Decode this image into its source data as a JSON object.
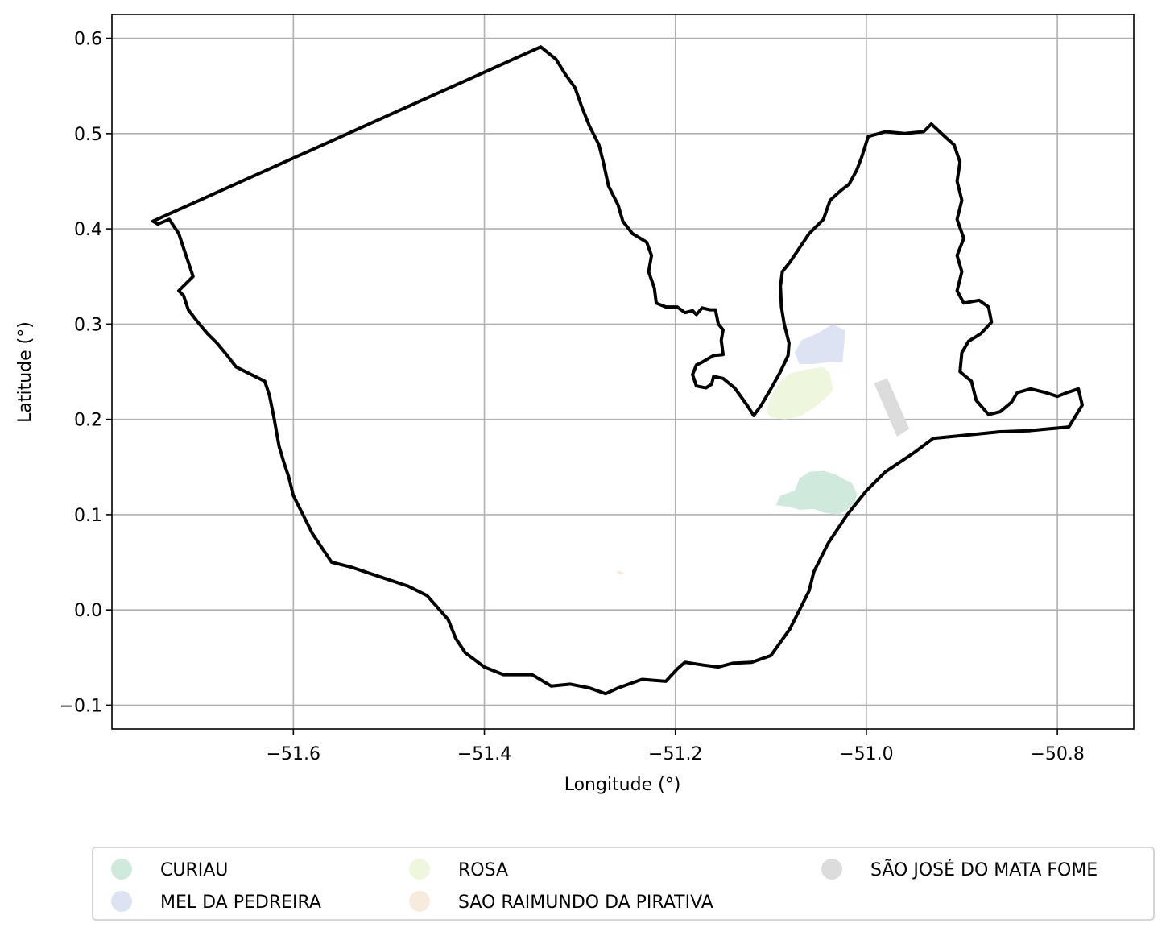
{
  "chart_data": {
    "type": "map",
    "xlabel": "Longitude (°)",
    "ylabel": "Latitude (°)",
    "xlim": [
      -51.79,
      -50.72
    ],
    "ylim": [
      -0.125,
      0.625
    ],
    "grid": true,
    "x_ticks": [
      -51.6,
      -51.4,
      -51.2,
      -51.0,
      -50.8
    ],
    "x_tick_labels": [
      "−51.6",
      "−51.4",
      "−51.2",
      "−51.0",
      "−50.8"
    ],
    "y_ticks": [
      -0.1,
      0.0,
      0.1,
      0.2,
      0.3,
      0.4,
      0.5,
      0.6
    ],
    "y_tick_labels": [
      "−0.1",
      "0.0",
      "0.1",
      "0.2",
      "0.3",
      "0.4",
      "0.5",
      "0.6"
    ],
    "legend_placement": "bottom-center",
    "legend_columns": 3,
    "boundary": {
      "color": "#000000",
      "coords": [
        [
          -51.747,
          0.408
        ],
        [
          -51.341,
          0.591
        ],
        [
          -51.325,
          0.578
        ],
        [
          -51.315,
          0.562
        ],
        [
          -51.305,
          0.548
        ],
        [
          -51.298,
          0.528
        ],
        [
          -51.29,
          0.508
        ],
        [
          -51.28,
          0.488
        ],
        [
          -51.275,
          0.468
        ],
        [
          -51.27,
          0.445
        ],
        [
          -51.26,
          0.425
        ],
        [
          -51.255,
          0.408
        ],
        [
          -51.245,
          0.395
        ],
        [
          -51.23,
          0.386
        ],
        [
          -51.225,
          0.372
        ],
        [
          -51.228,
          0.355
        ],
        [
          -51.222,
          0.338
        ],
        [
          -51.22,
          0.322
        ],
        [
          -51.21,
          0.318
        ],
        [
          -51.198,
          0.318
        ],
        [
          -51.19,
          0.312
        ],
        [
          -51.182,
          0.314
        ],
        [
          -51.178,
          0.31
        ],
        [
          -51.172,
          0.317
        ],
        [
          -51.164,
          0.315
        ],
        [
          -51.158,
          0.315
        ],
        [
          -51.155,
          0.3
        ],
        [
          -51.15,
          0.294
        ],
        [
          -51.152,
          0.283
        ],
        [
          -51.15,
          0.268
        ],
        [
          -51.16,
          0.267
        ],
        [
          -51.172,
          0.26
        ],
        [
          -51.178,
          0.257
        ],
        [
          -51.182,
          0.247
        ],
        [
          -51.178,
          0.235
        ],
        [
          -51.168,
          0.233
        ],
        [
          -51.162,
          0.237
        ],
        [
          -51.16,
          0.245
        ],
        [
          -51.15,
          0.243
        ],
        [
          -51.138,
          0.233
        ],
        [
          -51.125,
          0.215
        ],
        [
          -51.118,
          0.204
        ],
        [
          -51.11,
          0.215
        ],
        [
          -51.1,
          0.232
        ],
        [
          -51.09,
          0.25
        ],
        [
          -51.082,
          0.267
        ],
        [
          -51.081,
          0.28
        ],
        [
          -51.086,
          0.3
        ],
        [
          -51.089,
          0.318
        ],
        [
          -51.09,
          0.34
        ],
        [
          -51.088,
          0.355
        ],
        [
          -51.08,
          0.365
        ],
        [
          -51.07,
          0.38
        ],
        [
          -51.06,
          0.395
        ],
        [
          -51.045,
          0.41
        ],
        [
          -51.038,
          0.43
        ],
        [
          -51.027,
          0.44
        ],
        [
          -51.018,
          0.447
        ],
        [
          -51.01,
          0.462
        ],
        [
          -51.005,
          0.475
        ],
        [
          -50.998,
          0.497
        ],
        [
          -50.98,
          0.502
        ],
        [
          -50.96,
          0.5
        ],
        [
          -50.94,
          0.502
        ],
        [
          -50.932,
          0.51
        ],
        [
          -50.918,
          0.497
        ],
        [
          -50.908,
          0.488
        ],
        [
          -50.902,
          0.47
        ],
        [
          -50.905,
          0.45
        ],
        [
          -50.9,
          0.43
        ],
        [
          -50.905,
          0.41
        ],
        [
          -50.898,
          0.39
        ],
        [
          -50.905,
          0.372
        ],
        [
          -50.9,
          0.355
        ],
        [
          -50.905,
          0.335
        ],
        [
          -50.898,
          0.322
        ],
        [
          -50.882,
          0.325
        ],
        [
          -50.872,
          0.318
        ],
        [
          -50.869,
          0.302
        ],
        [
          -50.88,
          0.29
        ],
        [
          -50.893,
          0.282
        ],
        [
          -50.9,
          0.27
        ],
        [
          -50.902,
          0.25
        ],
        [
          -50.89,
          0.24
        ],
        [
          -50.885,
          0.22
        ],
        [
          -50.872,
          0.205
        ],
        [
          -50.86,
          0.208
        ],
        [
          -50.848,
          0.218
        ],
        [
          -50.842,
          0.228
        ],
        [
          -50.828,
          0.232
        ],
        [
          -50.812,
          0.228
        ],
        [
          -50.8,
          0.224
        ],
        [
          -50.79,
          0.228
        ],
        [
          -50.778,
          0.232
        ],
        [
          -50.774,
          0.215
        ],
        [
          -50.788,
          0.192
        ],
        [
          -50.81,
          0.19
        ],
        [
          -50.83,
          0.188
        ],
        [
          -50.86,
          0.187
        ],
        [
          -50.9,
          0.183
        ],
        [
          -50.93,
          0.18
        ],
        [
          -50.95,
          0.165
        ],
        [
          -50.98,
          0.145
        ],
        [
          -51.0,
          0.125
        ],
        [
          -51.02,
          0.1
        ],
        [
          -51.04,
          0.07
        ],
        [
          -51.055,
          0.04
        ],
        [
          -51.06,
          0.02
        ],
        [
          -51.07,
          0.0
        ],
        [
          -51.08,
          -0.02
        ],
        [
          -51.1,
          -0.048
        ],
        [
          -51.12,
          -0.055
        ],
        [
          -51.14,
          -0.056
        ],
        [
          -51.155,
          -0.06
        ],
        [
          -51.17,
          -0.058
        ],
        [
          -51.19,
          -0.055
        ],
        [
          -51.198,
          -0.062
        ],
        [
          -51.21,
          -0.075
        ],
        [
          -51.235,
          -0.073
        ],
        [
          -51.26,
          -0.082
        ],
        [
          -51.273,
          -0.088
        ],
        [
          -51.29,
          -0.082
        ],
        [
          -51.31,
          -0.078
        ],
        [
          -51.33,
          -0.08
        ],
        [
          -51.35,
          -0.068
        ],
        [
          -51.38,
          -0.068
        ],
        [
          -51.4,
          -0.06
        ],
        [
          -51.42,
          -0.045
        ],
        [
          -51.43,
          -0.03
        ],
        [
          -51.438,
          -0.01
        ],
        [
          -51.46,
          0.015
        ],
        [
          -51.48,
          0.025
        ],
        [
          -51.51,
          0.035
        ],
        [
          -51.54,
          0.045
        ],
        [
          -51.56,
          0.05
        ],
        [
          -51.57,
          0.065
        ],
        [
          -51.58,
          0.08
        ],
        [
          -51.59,
          0.1
        ],
        [
          -51.6,
          0.12
        ],
        [
          -51.605,
          0.14
        ],
        [
          -51.61,
          0.155
        ],
        [
          -51.615,
          0.172
        ],
        [
          -51.62,
          0.2
        ],
        [
          -51.625,
          0.225
        ],
        [
          -51.63,
          0.24
        ],
        [
          -51.64,
          0.245
        ],
        [
          -51.66,
          0.255
        ],
        [
          -51.67,
          0.268
        ],
        [
          -51.68,
          0.28
        ],
        [
          -51.69,
          0.29
        ],
        [
          -51.7,
          0.302
        ],
        [
          -51.71,
          0.315
        ],
        [
          -51.715,
          0.33
        ],
        [
          -51.72,
          0.335
        ],
        [
          -51.705,
          0.35
        ],
        [
          -51.71,
          0.365
        ],
        [
          -51.715,
          0.38
        ],
        [
          -51.72,
          0.395
        ],
        [
          -51.73,
          0.41
        ],
        [
          -51.742,
          0.405
        ],
        [
          -51.747,
          0.408
        ]
      ]
    },
    "series": [
      {
        "name": "CURIAU",
        "color": "#cfeadd",
        "coords": [
          [
            -51.095,
            0.11
          ],
          [
            -51.09,
            0.12
          ],
          [
            -51.075,
            0.125
          ],
          [
            -51.07,
            0.138
          ],
          [
            -51.06,
            0.145
          ],
          [
            -51.045,
            0.146
          ],
          [
            -51.032,
            0.142
          ],
          [
            -51.025,
            0.138
          ],
          [
            -51.015,
            0.133
          ],
          [
            -51.01,
            0.122
          ],
          [
            -51.012,
            0.112
          ],
          [
            -51.02,
            0.105
          ],
          [
            -51.03,
            0.1
          ],
          [
            -51.045,
            0.102
          ],
          [
            -51.055,
            0.106
          ],
          [
            -51.07,
            0.105
          ],
          [
            -51.08,
            0.108
          ],
          [
            -51.095,
            0.11
          ]
        ]
      },
      {
        "name": "MEL DA PEDREIRA",
        "color": "#dde3f2",
        "coords": [
          [
            -51.075,
            0.27
          ],
          [
            -51.068,
            0.283
          ],
          [
            -51.052,
            0.29
          ],
          [
            -51.035,
            0.3
          ],
          [
            -51.022,
            0.293
          ],
          [
            -51.025,
            0.26
          ],
          [
            -51.04,
            0.26
          ],
          [
            -51.055,
            0.258
          ],
          [
            -51.07,
            0.258
          ],
          [
            -51.075,
            0.27
          ]
        ]
      },
      {
        "name": "ROSA",
        "color": "#eef7dd",
        "coords": [
          [
            -51.105,
            0.208
          ],
          [
            -51.1,
            0.225
          ],
          [
            -51.09,
            0.24
          ],
          [
            -51.08,
            0.248
          ],
          [
            -51.065,
            0.252
          ],
          [
            -51.045,
            0.255
          ],
          [
            -51.038,
            0.248
          ],
          [
            -51.035,
            0.23
          ],
          [
            -51.04,
            0.225
          ],
          [
            -51.055,
            0.212
          ],
          [
            -51.07,
            0.203
          ],
          [
            -51.085,
            0.2
          ],
          [
            -51.1,
            0.202
          ],
          [
            -51.105,
            0.208
          ]
        ]
      },
      {
        "name": "SAO RAIMUNDO DA PIRATIVA",
        "color": "#f7ebdd",
        "coords": [
          [
            -51.262,
            0.04
          ],
          [
            -51.258,
            0.041
          ],
          [
            -51.253,
            0.038
          ],
          [
            -51.258,
            0.037
          ],
          [
            -51.262,
            0.04
          ]
        ]
      },
      {
        "name": "SÃO JOSÉ DO MATA FOME",
        "color": "#dcdcdc",
        "coords": [
          [
            -50.992,
            0.238
          ],
          [
            -50.978,
            0.243
          ],
          [
            -50.955,
            0.19
          ],
          [
            -50.968,
            0.182
          ],
          [
            -50.992,
            0.238
          ]
        ]
      }
    ]
  }
}
